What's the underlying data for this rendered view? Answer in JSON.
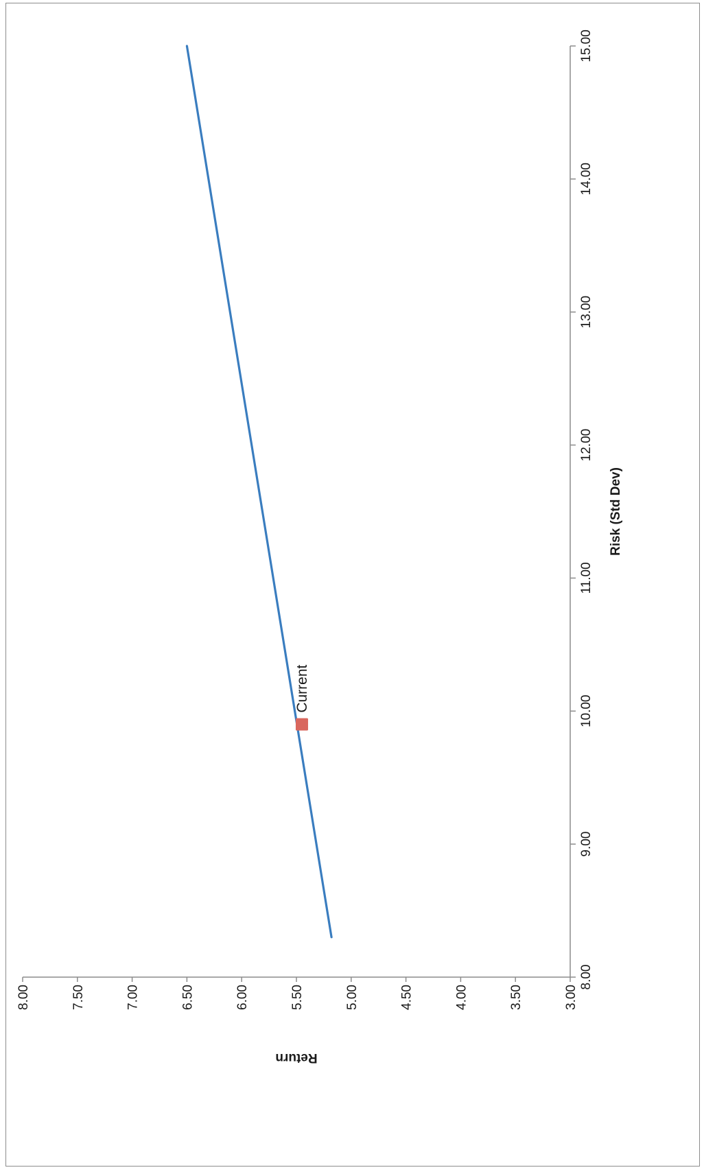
{
  "chart_data": {
    "type": "line",
    "orientation": "rotated 90° clockwise (page rotated)",
    "xlabel": "Risk (Std Dev)",
    "ylabel": "Return",
    "xlim": [
      8.0,
      15.0
    ],
    "ylim": [
      3.0,
      8.0
    ],
    "x_ticks": [
      "8.00",
      "9.00",
      "10.00",
      "11.00",
      "12.00",
      "13.00",
      "14.00",
      "15.00"
    ],
    "y_ticks": [
      "3.00",
      "3.50",
      "4.00",
      "4.50",
      "5.00",
      "5.50",
      "6.00",
      "6.50",
      "7.00",
      "7.50",
      "8.00"
    ],
    "grid": false,
    "series": [
      {
        "type": "line",
        "color": "#3a7dbf",
        "x": [
          8.3,
          15.0
        ],
        "y": [
          5.18,
          6.5
        ]
      },
      {
        "type": "scatter",
        "name": "Current",
        "color": "#d9675e",
        "x": [
          9.9
        ],
        "y": [
          5.45
        ]
      }
    ],
    "legend_label": "Current"
  }
}
